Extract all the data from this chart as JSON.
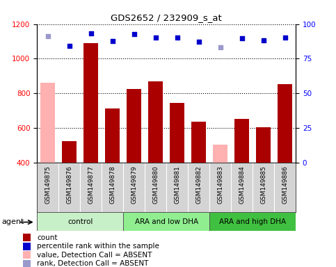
{
  "title": "GDS2652 / 232909_s_at",
  "samples": [
    "GSM149875",
    "GSM149876",
    "GSM149877",
    "GSM149878",
    "GSM149879",
    "GSM149880",
    "GSM149881",
    "GSM149882",
    "GSM149883",
    "GSM149884",
    "GSM149885",
    "GSM149886"
  ],
  "count_values": [
    860,
    527,
    1090,
    715,
    825,
    870,
    745,
    638,
    507,
    655,
    607,
    852
  ],
  "count_absent": [
    true,
    false,
    false,
    false,
    false,
    false,
    false,
    false,
    true,
    false,
    false,
    false
  ],
  "percentile_values_right": [
    91.5,
    84.5,
    93.5,
    88.0,
    93.0,
    90.5,
    90.5,
    87.5,
    83.5,
    90.0,
    88.5,
    90.5
  ],
  "percentile_absent": [
    true,
    false,
    false,
    false,
    false,
    false,
    false,
    false,
    true,
    false,
    false,
    false
  ],
  "ylim_left": [
    400,
    1200
  ],
  "ylim_right": [
    0,
    100
  ],
  "yticks_left": [
    400,
    600,
    800,
    1000,
    1200
  ],
  "yticks_right": [
    0,
    25,
    50,
    75,
    100
  ],
  "groups": [
    {
      "label": "control",
      "start": 0,
      "end": 3,
      "color": "#c8f0c8"
    },
    {
      "label": "ARA and low DHA",
      "start": 4,
      "end": 7,
      "color": "#90ee90"
    },
    {
      "label": "ARA and high DHA",
      "start": 8,
      "end": 11,
      "color": "#40c040"
    }
  ],
  "bar_color_present": "#aa0000",
  "bar_color_absent": "#ffb0b0",
  "dot_color_present": "#0000cc",
  "dot_color_absent": "#9999cc",
  "bar_width": 0.7,
  "legend_items": [
    {
      "label": "count",
      "color": "#aa0000",
      "type": "square"
    },
    {
      "label": "percentile rank within the sample",
      "color": "#0000cc",
      "type": "square"
    },
    {
      "label": "value, Detection Call = ABSENT",
      "color": "#ffb0b0",
      "type": "square"
    },
    {
      "label": "rank, Detection Call = ABSENT",
      "color": "#9999cc",
      "type": "square"
    }
  ]
}
